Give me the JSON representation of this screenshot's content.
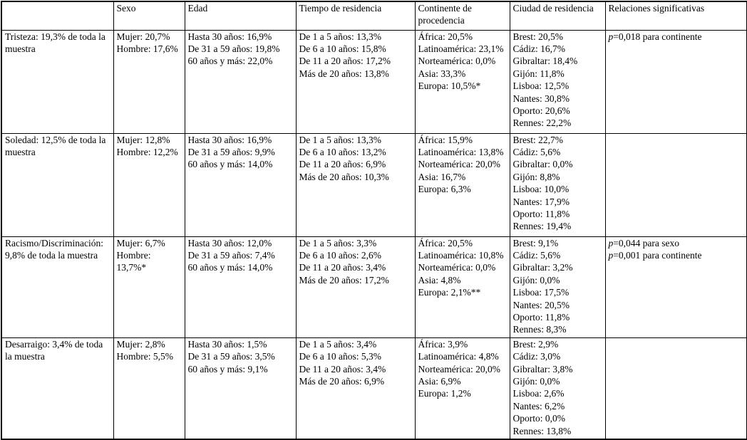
{
  "table": {
    "headers": [
      "",
      "Sexo",
      "Edad",
      "Tiempo de residencia",
      "Continente de procedencia",
      "Ciudad de residencia",
      "Relaciones significativas"
    ],
    "rows": [
      {
        "label": "Tristeza: 19,3% de toda la muestra",
        "sexo": [
          "Mujer: 20,7%",
          "Hombre: 17,6%"
        ],
        "edad": [
          "Hasta 30 años: 16,9%",
          "De 31 a 59 años: 19,8%",
          "60 años y más: 22,0%"
        ],
        "tiempo": [
          "De 1 a 5 años: 13,3%",
          "De 6 a 10 años: 15,8%",
          "De 11 a 20 años: 17,2%",
          "Más de 20 años: 13,8%"
        ],
        "continente": [
          "África: 20,5%",
          "Latinoamérica: 23,1%",
          "Norteamérica: 0,0%",
          "Asia: 33,3%",
          "Europa: 10,5%*"
        ],
        "ciudad": [
          "Brest: 20,5%",
          "Cádiz: 16,7%",
          "Gibraltar: 18,4%",
          "Gijón: 11,8%",
          "Lisboa: 12,5%",
          "Nantes: 30,8%",
          "Oporto: 20,6%",
          "Rennes: 22,2%"
        ],
        "relaciones": [
          "p=0,018 para continente"
        ]
      },
      {
        "label": "Soledad: 12,5% de toda la muestra",
        "sexo": [
          "Mujer: 12,8%",
          "Hombre: 12,2%"
        ],
        "edad": [
          "Hasta 30 años: 16,9%",
          "De 31 a 59 años: 9,9%",
          "60 años y más: 14,0%"
        ],
        "tiempo": [
          "De 1 a 5 años: 13,3%",
          "De 6 a 10 años: 13,2%",
          "De 11 a 20 años: 6,9%",
          "Más de 20 años: 10,3%"
        ],
        "continente": [
          "África: 15,9%",
          "Latinoamérica: 13,8%",
          "Norteamérica: 20,0%",
          "Asia: 16,7%",
          "Europa: 6,3%"
        ],
        "ciudad": [
          "Brest: 22,7%",
          "Cádiz: 5,6%",
          "Gibraltar: 0,0%",
          "Gijón: 8,8%",
          "Lisboa: 10,0%",
          "Nantes: 17,9%",
          "Oporto: 11,8%",
          "Rennes: 19,4%"
        ],
        "relaciones": []
      },
      {
        "label": "Racismo/Discriminación: 9,8% de toda la muestra",
        "sexo": [
          "Mujer: 6,7%",
          "Hombre: 13,7%*"
        ],
        "edad": [
          "Hasta 30 años: 12,0%",
          "De 31 a 59 años: 7,4%",
          "60 años y más: 14,0%"
        ],
        "tiempo": [
          "De 1 a 5 años: 3,3%",
          "De 6 a 10 años: 2,6%",
          "De 11 a 20 años: 3,4%",
          "Más de 20 años: 17,2%"
        ],
        "continente": [
          "África: 20,5%",
          "Latinoamérica: 10,8%",
          "Norteamérica: 0,0%",
          "Asia: 4,8%",
          "Europa: 2,1%**"
        ],
        "ciudad": [
          "Brest: 9,1%",
          "Cádiz: 5,6%",
          "Gibraltar: 3,2%",
          "Gijón: 0,0%",
          "Lisboa: 17,5%",
          "Nantes: 20,5%",
          "Oporto: 11,8%",
          "Rennes: 8,3%"
        ],
        "relaciones": [
          "p=0,044 para sexo",
          "p=0,001 para continente"
        ]
      },
      {
        "label": "Desarraigo: 3,4% de toda la muestra",
        "sexo": [
          "Mujer: 2,8%",
          "Hombre: 5,5%"
        ],
        "edad": [
          "Hasta 30 años: 1,5%",
          "De 31 a 59 años: 3,5%",
          "60 años y más: 9,1%"
        ],
        "tiempo": [
          "De 1 a 5 años: 3,4%",
          "De 6 a 10 años: 5,3%",
          "De 11 a 20 años: 3,4%",
          "Más de 20 años: 6,9%"
        ],
        "continente": [
          "África: 3,9%",
          "Latinoamérica: 4,8%",
          "Norteamérica: 20,0%",
          "Asia: 6,9%",
          "Europa: 1,2%"
        ],
        "ciudad": [
          "Brest: 2,9%",
          "Cádiz: 3,0%",
          "Gibraltar: 3,8%",
          "Gijón: 0,0%",
          "Lisboa: 2,6%",
          "Nantes: 6,2%",
          "Oporto: 0,0%",
          "Rennes: 13,8%"
        ],
        "relaciones": []
      }
    ]
  }
}
